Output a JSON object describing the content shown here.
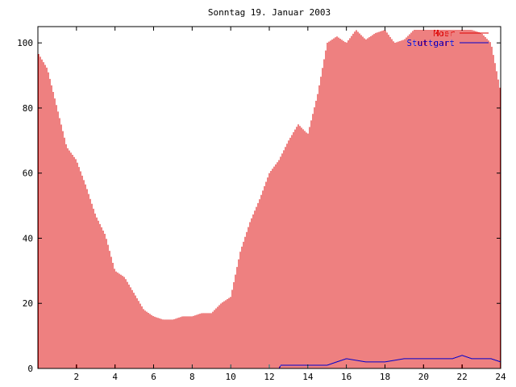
{
  "chart_data": {
    "type": "bar",
    "title": "Sonntag 19. Januar 2003",
    "xlabel": "",
    "ylabel": "",
    "xlim": [
      0,
      24
    ],
    "ylim": [
      0,
      105
    ],
    "x_ticks": [
      "2",
      "4",
      "6",
      "8",
      "10",
      "12",
      "14",
      "16",
      "18",
      "20",
      "22",
      "24"
    ],
    "y_ticks": [
      "0",
      "20",
      "40",
      "60",
      "80",
      "100"
    ],
    "grid": false,
    "legend_position": "top-right",
    "series": [
      {
        "name": "Moer",
        "color": "#dd0000",
        "style": "impulses",
        "points": [
          [
            0.0,
            97
          ],
          [
            0.5,
            92
          ],
          [
            1.0,
            80
          ],
          [
            1.5,
            68
          ],
          [
            2.0,
            64
          ],
          [
            2.5,
            56
          ],
          [
            3.0,
            47
          ],
          [
            3.5,
            41
          ],
          [
            4.0,
            30
          ],
          [
            4.5,
            28
          ],
          [
            5.0,
            23
          ],
          [
            5.5,
            18
          ],
          [
            6.0,
            16
          ],
          [
            6.5,
            15
          ],
          [
            7.0,
            15
          ],
          [
            7.5,
            16
          ],
          [
            8.0,
            16
          ],
          [
            8.5,
            17
          ],
          [
            9.0,
            17
          ],
          [
            9.5,
            20
          ],
          [
            10.0,
            22
          ],
          [
            10.5,
            36
          ],
          [
            11.0,
            45
          ],
          [
            11.5,
            52
          ],
          [
            12.0,
            60
          ],
          [
            12.5,
            64
          ],
          [
            13.0,
            70
          ],
          [
            13.5,
            75
          ],
          [
            14.0,
            72
          ],
          [
            14.5,
            84
          ],
          [
            15.0,
            100
          ],
          [
            15.5,
            102
          ],
          [
            16.0,
            100
          ],
          [
            16.5,
            104
          ],
          [
            17.0,
            101
          ],
          [
            17.5,
            103
          ],
          [
            18.0,
            104
          ],
          [
            18.5,
            100
          ],
          [
            19.0,
            101
          ],
          [
            19.5,
            104
          ],
          [
            20.0,
            104
          ],
          [
            20.5,
            104
          ],
          [
            21.0,
            104
          ],
          [
            21.5,
            104
          ],
          [
            22.0,
            104
          ],
          [
            22.5,
            104
          ],
          [
            23.0,
            103
          ],
          [
            23.5,
            100
          ],
          [
            24.0,
            85
          ]
        ]
      },
      {
        "name": "Stuttgart",
        "color": "#0000cc",
        "style": "line",
        "points": [
          [
            0.0,
            0
          ],
          [
            12.5,
            0
          ],
          [
            12.6,
            1
          ],
          [
            15.0,
            1
          ],
          [
            15.5,
            2
          ],
          [
            16.0,
            3
          ],
          [
            17.0,
            2
          ],
          [
            18.0,
            2
          ],
          [
            19.0,
            3
          ],
          [
            20.0,
            3
          ],
          [
            21.0,
            3
          ],
          [
            21.5,
            3
          ],
          [
            22.0,
            4
          ],
          [
            22.5,
            3
          ],
          [
            23.5,
            3
          ],
          [
            24.0,
            2
          ]
        ]
      }
    ]
  }
}
